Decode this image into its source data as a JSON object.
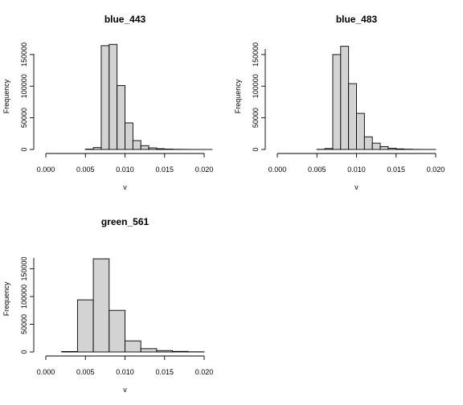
{
  "chart_data": [
    {
      "type": "bar",
      "title": "blue_443",
      "xlabel": "v",
      "ylabel": "Frequency",
      "xlim": [
        0.0,
        0.02
      ],
      "ylim": [
        0,
        160000
      ],
      "x_ticks": [
        "0.000",
        "0.005",
        "0.010",
        "0.015",
        "0.020"
      ],
      "y_ticks": [
        "0",
        "50000",
        "100000",
        "150000"
      ],
      "y_tick_values": [
        0,
        50000,
        100000,
        150000
      ],
      "bin_width": 0.001,
      "bin_start": 0.005,
      "values": [
        500,
        3000,
        164000,
        166000,
        101000,
        42000,
        14000,
        6000,
        2500,
        1200,
        600,
        300,
        150,
        60,
        30,
        10
      ]
    },
    {
      "type": "bar",
      "title": "blue_483",
      "xlabel": "v",
      "ylabel": "Frequency",
      "xlim": [
        0.0,
        0.02
      ],
      "ylim": [
        0,
        160000
      ],
      "x_ticks": [
        "0.000",
        "0.005",
        "0.010",
        "0.015",
        "0.020"
      ],
      "y_ticks": [
        "0",
        "50000",
        "100000",
        "150000"
      ],
      "y_tick_values": [
        0,
        50000,
        100000,
        150000
      ],
      "bin_width": 0.001,
      "bin_start": 0.005,
      "values": [
        200,
        1500,
        150000,
        163000,
        104000,
        57000,
        20000,
        10000,
        4500,
        2000,
        900,
        400,
        150,
        60,
        20
      ]
    },
    {
      "type": "bar",
      "title": "green_561",
      "xlabel": "v",
      "ylabel": "Frequency",
      "xlim": [
        0.0,
        0.02
      ],
      "ylim": [
        0,
        200000
      ],
      "x_ticks": [
        "0.000",
        "0.005",
        "0.010",
        "0.015",
        "0.020"
      ],
      "y_ticks": [
        "0",
        "50000",
        "100000",
        "150000"
      ],
      "y_tick_values": [
        0,
        50000,
        100000,
        150000
      ],
      "bin_width": 0.002,
      "bin_start": 0.002,
      "values": [
        800,
        94000,
        168000,
        75000,
        20000,
        6000,
        2500,
        1000,
        300
      ]
    }
  ]
}
